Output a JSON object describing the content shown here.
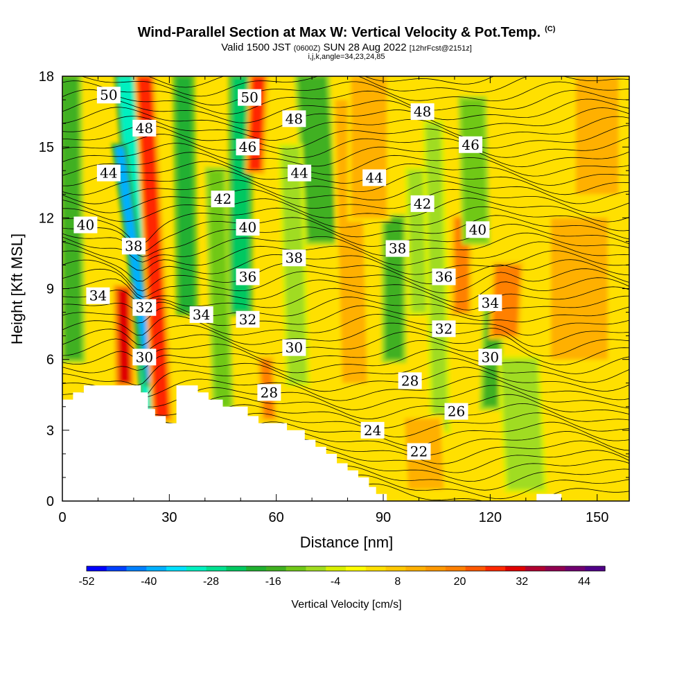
{
  "title": {
    "main": "Wind-Parallel Section at Max W: Vertical Velocity & Pot.Temp.",
    "copyright": "(C)",
    "valid_prefix": "Valid 1500 JST",
    "valid_utc": "(0600Z)",
    "valid_date": "SUN 28 Aug 2022",
    "forecast": "[12hrFcst@2151z]",
    "indices": "i,j,k,angle=34,23,24,85"
  },
  "chart_data": {
    "type": "heatmap",
    "xlabel": "Distance [nm]",
    "ylabel": "Height [Kft MSL]",
    "xlim": [
      0,
      159
    ],
    "ylim": [
      0,
      18
    ],
    "x_ticks": [
      0,
      30,
      60,
      90,
      120,
      150
    ],
    "y_ticks": [
      0,
      3,
      6,
      9,
      12,
      15,
      18
    ],
    "colorbar": {
      "title": "Vertical Velocity [cm/s]",
      "tick_labels": [
        -52,
        -40,
        -28,
        -16,
        -4,
        8,
        20,
        32,
        44
      ],
      "levels": [
        -52,
        -48,
        -44,
        -40,
        -36,
        -32,
        -28,
        -24,
        -20,
        -16,
        -12,
        -8,
        -4,
        0,
        4,
        8,
        12,
        16,
        20,
        24,
        28,
        32,
        36,
        40,
        44,
        48
      ],
      "colors": [
        "#0000ff",
        "#0040ff",
        "#0080ff",
        "#00b0ff",
        "#00e0ff",
        "#00f0c0",
        "#00e090",
        "#00c860",
        "#20b030",
        "#40b020",
        "#70c818",
        "#a0dc20",
        "#d8f000",
        "#ffff00",
        "#ffe000",
        "#ffc800",
        "#ffb000",
        "#ff9800",
        "#ff8000",
        "#ff5800",
        "#ff2800",
        "#e00000",
        "#b00030",
        "#900050",
        "#700070",
        "#500088"
      ]
    },
    "theta_contour_labels": [
      {
        "value": "50",
        "x": 13.0,
        "y": 17.2
      },
      {
        "value": "50",
        "x": 52.5,
        "y": 17.1
      },
      {
        "value": "48",
        "x": 23.0,
        "y": 15.8
      },
      {
        "value": "48",
        "x": 65.0,
        "y": 16.2
      },
      {
        "value": "48",
        "x": 101.0,
        "y": 16.5
      },
      {
        "value": "46",
        "x": 52.0,
        "y": 15.0
      },
      {
        "value": "46",
        "x": 114.5,
        "y": 15.1
      },
      {
        "value": "44",
        "x": 13.0,
        "y": 13.9
      },
      {
        "value": "44",
        "x": 66.5,
        "y": 13.9
      },
      {
        "value": "44",
        "x": 87.5,
        "y": 13.7
      },
      {
        "value": "42",
        "x": 45.0,
        "y": 12.8
      },
      {
        "value": "42",
        "x": 101.0,
        "y": 12.6
      },
      {
        "value": "40",
        "x": 6.5,
        "y": 11.7
      },
      {
        "value": "40",
        "x": 52.0,
        "y": 11.6
      },
      {
        "value": "40",
        "x": 116.5,
        "y": 11.5
      },
      {
        "value": "38",
        "x": 20.0,
        "y": 10.8
      },
      {
        "value": "38",
        "x": 65.0,
        "y": 10.3
      },
      {
        "value": "38",
        "x": 94.0,
        "y": 10.7
      },
      {
        "value": "36",
        "x": 52.0,
        "y": 9.5
      },
      {
        "value": "36",
        "x": 107.0,
        "y": 9.5
      },
      {
        "value": "34",
        "x": 10.0,
        "y": 8.7
      },
      {
        "value": "34",
        "x": 39.0,
        "y": 7.9
      },
      {
        "value": "34",
        "x": 120.0,
        "y": 8.4
      },
      {
        "value": "32",
        "x": 23.0,
        "y": 8.2
      },
      {
        "value": "32",
        "x": 52.0,
        "y": 7.7
      },
      {
        "value": "32",
        "x": 107.0,
        "y": 7.3
      },
      {
        "value": "30",
        "x": 23.0,
        "y": 6.1
      },
      {
        "value": "30",
        "x": 65.0,
        "y": 6.5
      },
      {
        "value": "30",
        "x": 120.0,
        "y": 6.1
      },
      {
        "value": "28",
        "x": 58.0,
        "y": 4.6
      },
      {
        "value": "28",
        "x": 97.5,
        "y": 5.1
      },
      {
        "value": "26",
        "x": 110.5,
        "y": 3.8
      },
      {
        "value": "24",
        "x": 87.0,
        "y": 3.0
      },
      {
        "value": "22",
        "x": 100.0,
        "y": 2.1
      }
    ],
    "terrain_steps": [
      [
        0,
        4.3
      ],
      [
        3,
        4.3
      ],
      [
        3,
        4.6
      ],
      [
        6,
        4.6
      ],
      [
        6,
        4.9
      ],
      [
        22,
        4.9
      ],
      [
        22,
        4.6
      ],
      [
        24,
        4.6
      ],
      [
        24,
        3.9
      ],
      [
        26,
        3.9
      ],
      [
        26,
        3.6
      ],
      [
        29,
        3.6
      ],
      [
        29,
        3.3
      ],
      [
        32,
        3.3
      ],
      [
        32,
        4.9
      ],
      [
        38,
        4.9
      ],
      [
        38,
        4.6
      ],
      [
        41,
        4.6
      ],
      [
        41,
        4.3
      ],
      [
        45,
        4.3
      ],
      [
        45,
        4.0
      ],
      [
        52,
        4.0
      ],
      [
        52,
        3.6
      ],
      [
        55,
        3.6
      ],
      [
        55,
        3.3
      ],
      [
        63,
        3.3
      ],
      [
        63,
        3.0
      ],
      [
        68,
        3.0
      ],
      [
        68,
        2.6
      ],
      [
        71,
        2.6
      ],
      [
        71,
        2.3
      ],
      [
        74,
        2.3
      ],
      [
        74,
        2.0
      ],
      [
        77,
        2.0
      ],
      [
        77,
        1.6
      ],
      [
        80,
        1.6
      ],
      [
        80,
        1.3
      ],
      [
        83,
        1.3
      ],
      [
        83,
        1.0
      ],
      [
        86,
        1.0
      ],
      [
        86,
        0.6
      ],
      [
        88,
        0.6
      ],
      [
        88,
        0.3
      ],
      [
        91,
        0.3
      ],
      [
        91,
        0
      ]
    ],
    "terrain_bump": [
      [
        133,
        0
      ],
      [
        133,
        0.3
      ],
      [
        140,
        0.3
      ],
      [
        140,
        0
      ]
    ],
    "w_features": [
      {
        "x": 27,
        "xt": 18,
        "y1": 0.5,
        "y2": 18,
        "w": 2.5,
        "v": -30
      },
      {
        "x": 25,
        "xt": 16,
        "y1": 5,
        "y2": 15,
        "w": 1.2,
        "v": -38
      },
      {
        "x": 28,
        "xt": 23,
        "y1": 3.5,
        "y2": 18,
        "w": 2.0,
        "v": 30
      },
      {
        "x": 17.5,
        "xt": 17,
        "y1": 5,
        "y2": 9,
        "w": 1.6,
        "v": 32
      },
      {
        "x": 3,
        "xt": 2,
        "y1": 6,
        "y2": 18,
        "w": 2.5,
        "v": -16
      },
      {
        "x": 35,
        "xt": 34,
        "y1": 8,
        "y2": 18,
        "w": 2.2,
        "v": -18
      },
      {
        "x": 50,
        "xt": 50,
        "y1": 8,
        "y2": 18,
        "w": 2.5,
        "v": -24
      },
      {
        "x": 54,
        "xt": 55,
        "y1": 14,
        "y2": 18,
        "w": 1.8,
        "v": 28
      },
      {
        "x": 45,
        "xt": 43,
        "y1": 4,
        "y2": 14,
        "w": 2.0,
        "v": -10
      },
      {
        "x": 73,
        "xt": 70,
        "y1": 11,
        "y2": 18,
        "w": 4.0,
        "v": -16
      },
      {
        "x": 58,
        "xt": 57,
        "y1": 3.5,
        "y2": 6,
        "w": 1.5,
        "v": 20
      },
      {
        "x": 66,
        "xt": 64,
        "y1": 5,
        "y2": 15,
        "w": 2.5,
        "v": -6
      },
      {
        "x": 82,
        "xt": 80,
        "y1": 5,
        "y2": 17,
        "w": 3.5,
        "v": 14
      },
      {
        "x": 93,
        "xt": 93,
        "y1": 6,
        "y2": 12,
        "w": 2.5,
        "v": -14
      },
      {
        "x": 100,
        "xt": 99,
        "y1": 8,
        "y2": 14,
        "w": 2.0,
        "v": -8
      },
      {
        "x": 106,
        "xt": 104,
        "y1": 3,
        "y2": 16,
        "w": 2.0,
        "v": -6
      },
      {
        "x": 112,
        "xt": 112,
        "y1": 8,
        "y2": 12,
        "w": 2.0,
        "v": 22
      },
      {
        "x": 116,
        "xt": 115,
        "y1": 11,
        "y2": 17,
        "w": 3.0,
        "v": -12
      },
      {
        "x": 120,
        "xt": 121,
        "y1": 4,
        "y2": 8.5,
        "w": 2.0,
        "v": -14
      },
      {
        "x": 130,
        "xt": 128,
        "y1": 0.5,
        "y2": 6,
        "w": 5.0,
        "v": -8
      },
      {
        "x": 124,
        "xt": 125,
        "y1": 7,
        "y2": 10,
        "w": 3.5,
        "v": 20
      },
      {
        "x": 145,
        "xt": 145,
        "y1": 6,
        "y2": 12,
        "w": 8.0,
        "v": 12
      },
      {
        "x": 102,
        "xt": 101,
        "y1": 0.5,
        "y2": 3.5,
        "w": 5.0,
        "v": 12
      },
      {
        "x": 86,
        "xt": 86,
        "y1": 12,
        "y2": 18,
        "w": 5.0,
        "v": 12
      },
      {
        "x": 150,
        "xt": 150,
        "y1": 13,
        "y2": 18,
        "w": 6.0,
        "v": 12
      }
    ]
  }
}
